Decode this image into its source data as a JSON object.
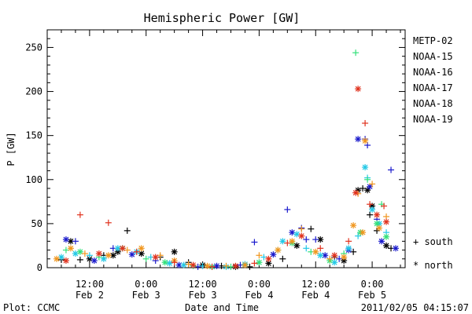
{
  "chart_data": {
    "type": "scatter",
    "title": "Hemispheric Power [GW]",
    "ylabel": "P [GW]",
    "xlabel": "Date and Time",
    "ylim": [
      0,
      270
    ],
    "xlim_hours_note": "",
    "x_ticks": [
      {
        "time": "12:00",
        "date": "Feb 2"
      },
      {
        "time": "0:00",
        "date": "Feb 3"
      },
      {
        "time": "12:00",
        "date": "Feb 3"
      },
      {
        "time": "0:00",
        "date": "Feb 4"
      },
      {
        "time": "12:00",
        "date": "Feb 4"
      },
      {
        "time": "0:00",
        "date": "Feb 5"
      }
    ],
    "y_ticks": [
      0,
      50,
      100,
      150,
      200,
      250
    ],
    "legend_series": [
      {
        "name": "METP-02",
        "color": "#000000"
      },
      {
        "name": "NOAA-15",
        "color": "#1a1acc"
      },
      {
        "name": "NOAA-16",
        "color": "#22c8e6"
      },
      {
        "name": "NOAA-17",
        "color": "#33e07a"
      },
      {
        "name": "NOAA-18",
        "color": "#f0961e"
      },
      {
        "name": "NOAA-19",
        "color": "#e0321e"
      }
    ],
    "symbol_legend": [
      {
        "symbol": "+",
        "label": "south"
      },
      {
        "symbol": "*",
        "label": "north"
      }
    ],
    "series": [
      {
        "name": "METP-02",
        "points": [
          [
            3,
            9,
            "+"
          ],
          [
            5,
            30,
            "*"
          ],
          [
            9,
            10,
            "*"
          ],
          [
            12,
            14,
            "+"
          ],
          [
            15,
            18,
            "*"
          ],
          [
            17,
            42,
            "+"
          ],
          [
            20,
            16,
            "*"
          ],
          [
            24,
            12,
            "+"
          ],
          [
            27,
            18,
            "*"
          ],
          [
            30,
            6,
            "+"
          ],
          [
            33,
            3,
            "*"
          ],
          [
            37,
            2,
            "+"
          ],
          [
            40,
            1,
            "*"
          ],
          [
            43,
            1,
            "+"
          ],
          [
            47,
            5,
            "*"
          ],
          [
            50,
            10,
            "+"
          ],
          [
            53,
            25,
            "*"
          ],
          [
            56,
            44,
            "+"
          ],
          [
            58,
            32,
            "*"
          ],
          [
            61,
            12,
            "+"
          ],
          [
            63,
            8,
            "*"
          ],
          [
            65,
            18,
            "+"
          ],
          [
            66,
            88,
            "*"
          ],
          [
            67,
            90,
            "+"
          ],
          [
            68,
            88,
            "*"
          ],
          [
            68.5,
            60,
            "+"
          ],
          [
            69,
            70,
            "*"
          ],
          [
            70,
            42,
            "+"
          ],
          [
            72,
            25,
            "*"
          ],
          [
            73,
            22,
            "+"
          ],
          [
            14,
            14,
            "*"
          ],
          [
            7,
            9,
            "+"
          ]
        ]
      },
      {
        "name": "NOAA-15",
        "points": [
          [
            4,
            32,
            "*"
          ],
          [
            6,
            30,
            "+"
          ],
          [
            10,
            8,
            "*"
          ],
          [
            14,
            22,
            "+"
          ],
          [
            18,
            15,
            "*"
          ],
          [
            23,
            8,
            "+"
          ],
          [
            28,
            3,
            "*"
          ],
          [
            32,
            1,
            "+"
          ],
          [
            36,
            2,
            "*"
          ],
          [
            41,
            3,
            "+"
          ],
          [
            44,
            29,
            "+"
          ],
          [
            48,
            15,
            "*"
          ],
          [
            51,
            66,
            "+"
          ],
          [
            52,
            40,
            "*"
          ],
          [
            54,
            45,
            "+"
          ],
          [
            55,
            32,
            "+"
          ],
          [
            57,
            32,
            "+"
          ],
          [
            59,
            14,
            "*"
          ],
          [
            62,
            10,
            "+"
          ],
          [
            64,
            20,
            "*"
          ],
          [
            66,
            146,
            "*"
          ],
          [
            67.5,
            146,
            "+"
          ],
          [
            68,
            139,
            "+"
          ],
          [
            68.5,
            92,
            "*"
          ],
          [
            70,
            55,
            "+"
          ],
          [
            71,
            30,
            "*"
          ],
          [
            73,
            111,
            "+"
          ],
          [
            74,
            22,
            "*"
          ]
        ]
      },
      {
        "name": "NOAA-16",
        "points": [
          [
            3,
            12,
            "*"
          ],
          [
            6,
            16,
            "*"
          ],
          [
            9,
            14,
            "+"
          ],
          [
            12,
            10,
            "*"
          ],
          [
            15,
            22,
            "*"
          ],
          [
            19,
            18,
            "*"
          ],
          [
            22,
            12,
            "+"
          ],
          [
            26,
            5,
            "*"
          ],
          [
            29,
            3,
            "*"
          ],
          [
            33,
            2,
            "+"
          ],
          [
            38,
            1,
            "*"
          ],
          [
            42,
            4,
            "*"
          ],
          [
            46,
            12,
            "+"
          ],
          [
            50,
            30,
            "*"
          ],
          [
            53,
            38,
            "*"
          ],
          [
            55,
            22,
            "+"
          ],
          [
            58,
            14,
            "*"
          ],
          [
            61,
            6,
            "*"
          ],
          [
            64,
            22,
            "*"
          ],
          [
            66,
            36,
            "+"
          ],
          [
            67.5,
            114,
            "*"
          ],
          [
            68,
            102,
            "+"
          ],
          [
            69,
            66,
            "*"
          ],
          [
            70.5,
            50,
            "*"
          ],
          [
            72,
            40,
            "+"
          ]
        ]
      },
      {
        "name": "NOAA-17",
        "points": [
          [
            4,
            20,
            "+"
          ],
          [
            7,
            18,
            "*"
          ],
          [
            11,
            12,
            "+"
          ],
          [
            16,
            22,
            "*"
          ],
          [
            21,
            10,
            "+"
          ],
          [
            25,
            6,
            "*"
          ],
          [
            31,
            2,
            "+"
          ],
          [
            35,
            1,
            "*"
          ],
          [
            39,
            1,
            "+"
          ],
          [
            45,
            6,
            "*"
          ],
          [
            49,
            20,
            "+"
          ],
          [
            52,
            28,
            "*"
          ],
          [
            56,
            18,
            "+"
          ],
          [
            60,
            8,
            "*"
          ],
          [
            63,
            16,
            "+"
          ],
          [
            65.5,
            244,
            "+"
          ],
          [
            66.5,
            40,
            "*"
          ],
          [
            68,
            100,
            "+"
          ],
          [
            70,
            50,
            "*"
          ],
          [
            71,
            72,
            "+"
          ],
          [
            72,
            35,
            "*"
          ]
        ]
      },
      {
        "name": "NOAA-18",
        "points": [
          [
            2,
            10,
            "*"
          ],
          [
            5,
            22,
            "*"
          ],
          [
            8,
            16,
            "+"
          ],
          [
            13,
            14,
            "*"
          ],
          [
            17,
            20,
            "+"
          ],
          [
            20,
            22,
            "*"
          ],
          [
            24,
            14,
            "+"
          ],
          [
            27,
            8,
            "*"
          ],
          [
            30,
            4,
            "+"
          ],
          [
            34,
            2,
            "*"
          ],
          [
            38,
            2,
            "+"
          ],
          [
            42,
            3,
            "*"
          ],
          [
            45,
            14,
            "+"
          ],
          [
            49,
            20,
            "*"
          ],
          [
            52,
            30,
            "*"
          ],
          [
            54,
            44,
            "+"
          ],
          [
            57,
            18,
            "*"
          ],
          [
            60,
            10,
            "+"
          ],
          [
            63,
            12,
            "*"
          ],
          [
            65,
            48,
            "*"
          ],
          [
            66,
            84,
            "+"
          ],
          [
            67,
            40,
            "*"
          ],
          [
            67.5,
            144,
            "*"
          ],
          [
            69,
            95,
            "+"
          ],
          [
            70.5,
            45,
            "*"
          ],
          [
            72,
            58,
            "+"
          ]
        ]
      },
      {
        "name": "NOAA-19",
        "points": [
          [
            4,
            8,
            "*"
          ],
          [
            7,
            60,
            "+"
          ],
          [
            11,
            16,
            "*"
          ],
          [
            13,
            51,
            "+"
          ],
          [
            16,
            22,
            "*"
          ],
          [
            19,
            18,
            "+"
          ],
          [
            23,
            12,
            "*"
          ],
          [
            27,
            6,
            "+"
          ],
          [
            31,
            3,
            "*"
          ],
          [
            35,
            1,
            "+"
          ],
          [
            40,
            2,
            "*"
          ],
          [
            44,
            5,
            "+"
          ],
          [
            47,
            10,
            "*"
          ],
          [
            51,
            28,
            "+"
          ],
          [
            54,
            36,
            "*"
          ],
          [
            58,
            22,
            "+"
          ],
          [
            61,
            14,
            "*"
          ],
          [
            64,
            30,
            "+"
          ],
          [
            65.5,
            85,
            "*"
          ],
          [
            66,
            203,
            "*"
          ],
          [
            67.5,
            164,
            "+"
          ],
          [
            68.5,
            72,
            "+"
          ],
          [
            70,
            60,
            "*"
          ],
          [
            71.5,
            70,
            "+"
          ],
          [
            72,
            52,
            "*"
          ]
        ]
      }
    ]
  },
  "footer": {
    "left": "Plot: CCMC",
    "right": "2011/02/05 04:15:07"
  }
}
